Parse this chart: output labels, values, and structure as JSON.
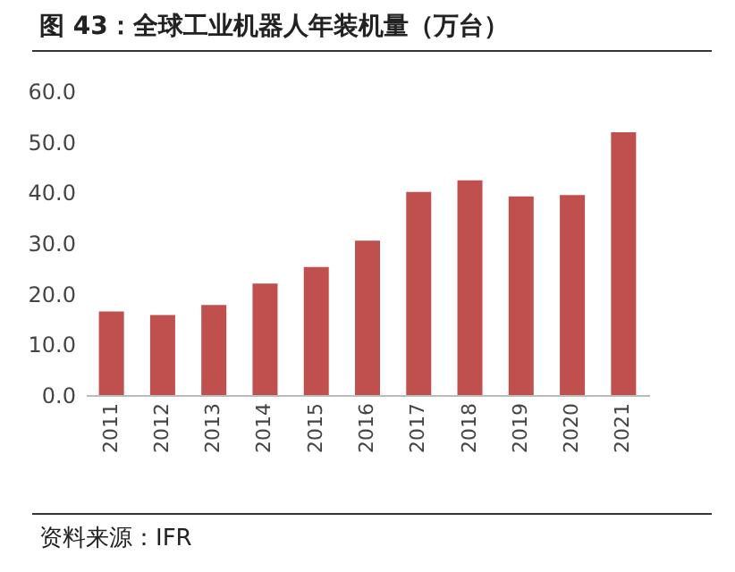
{
  "chart_data": {
    "type": "bar",
    "title": "图 43：全球工业机器人年装机量（万台）",
    "categories": [
      "2011",
      "2012",
      "2013",
      "2014",
      "2015",
      "2016",
      "2017",
      "2018",
      "2019",
      "2020",
      "2021"
    ],
    "values": [
      16.5,
      15.8,
      17.8,
      22.0,
      25.3,
      30.5,
      40.1,
      42.4,
      39.2,
      39.5,
      51.9
    ],
    "color": "#c0504d",
    "ylim": [
      0,
      60
    ],
    "yticks": [
      {
        "value": 0,
        "label": "0.0"
      },
      {
        "value": 10,
        "label": "10.0"
      },
      {
        "value": 20,
        "label": "20.0"
      },
      {
        "value": 30,
        "label": "30.0"
      },
      {
        "value": 40,
        "label": "40.0"
      },
      {
        "value": 50,
        "label": "50.0"
      },
      {
        "value": 60,
        "label": "60.0"
      }
    ],
    "grid": false,
    "annotations": [
      "资料来源：IFR"
    ]
  }
}
